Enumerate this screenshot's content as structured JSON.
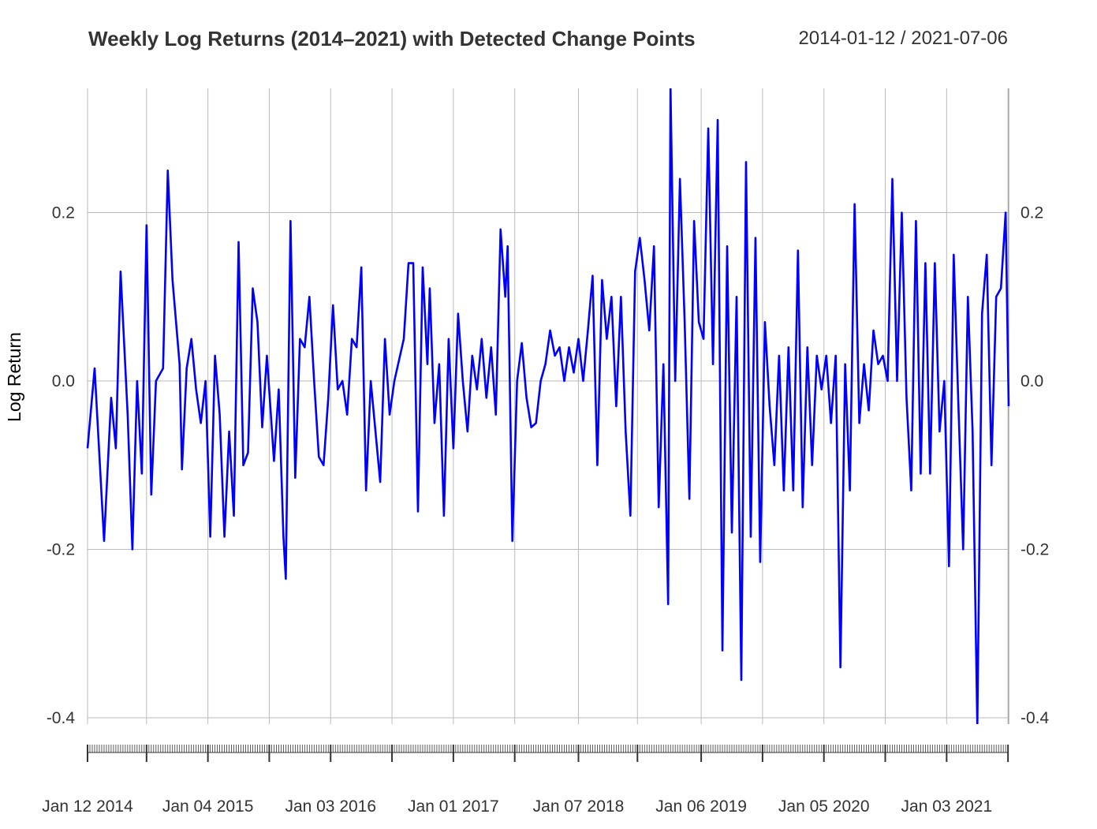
{
  "chart_data": {
    "type": "line",
    "title": "Weekly Log Returns (2014–2021) with Detected Change Points",
    "date_range": "2014-01-12 / 2021-07-06",
    "xlabel": "",
    "ylabel": "Log Return",
    "x_start": "2014-01-12",
    "x_end": "2021-07-06",
    "ylim": [
      -0.4,
      0.35
    ],
    "y_ticks": [
      0.2,
      0.0,
      -0.2,
      -0.4
    ],
    "y_tick_labels": [
      "0.2",
      "0.0",
      "-0.2",
      "-0.4"
    ],
    "x_ticks": [
      {
        "date": "2014-01-12",
        "label": "Jan 12 2014"
      },
      {
        "date": "2015-01-04",
        "label": "Jan 04 2015"
      },
      {
        "date": "2016-01-03",
        "label": "Jan 03 2016"
      },
      {
        "date": "2017-01-01",
        "label": "Jan 01 2017"
      },
      {
        "date": "2018-01-07",
        "label": "Jan 07 2018"
      },
      {
        "date": "2019-01-06",
        "label": "Jan 06 2019"
      },
      {
        "date": "2020-01-05",
        "label": "Jan 05 2020"
      },
      {
        "date": "2021-01-03",
        "label": "Jan 03 2021"
      }
    ],
    "x_gridlines": [
      "2014-01-12",
      "2014-07-06",
      "2015-01-04",
      "2015-07-05",
      "2016-01-03",
      "2016-07-03",
      "2017-01-01",
      "2017-07-02",
      "2018-01-07",
      "2018-07-01",
      "2019-01-06",
      "2019-07-07",
      "2020-01-05",
      "2020-07-05",
      "2021-01-03",
      "2021-07-04"
    ],
    "grid": true,
    "series": [
      {
        "color": "#0000ff",
        "points": [
          [
            "2014-01-12",
            -0.08
          ],
          [
            "2014-02-02",
            0.015
          ],
          [
            "2014-03-02",
            -0.19
          ],
          [
            "2014-03-23",
            -0.02
          ],
          [
            "2014-04-06",
            -0.08
          ],
          [
            "2014-04-20",
            0.13
          ],
          [
            "2014-05-11",
            -0.04
          ],
          [
            "2014-05-25",
            -0.2
          ],
          [
            "2014-06-08",
            0.0
          ],
          [
            "2014-06-22",
            -0.11
          ],
          [
            "2014-07-06",
            0.185
          ],
          [
            "2014-07-20",
            -0.135
          ],
          [
            "2014-08-03",
            0.0
          ],
          [
            "2014-08-24",
            0.015
          ],
          [
            "2014-09-07",
            0.25
          ],
          [
            "2014-09-21",
            0.12
          ],
          [
            "2014-10-12",
            0.02
          ],
          [
            "2014-10-19",
            -0.105
          ],
          [
            "2014-11-02",
            0.015
          ],
          [
            "2014-11-16",
            0.05
          ],
          [
            "2014-11-30",
            -0.01
          ],
          [
            "2014-12-14",
            -0.05
          ],
          [
            "2014-12-28",
            0.0
          ],
          [
            "2015-01-11",
            -0.185
          ],
          [
            "2015-01-25",
            0.03
          ],
          [
            "2015-02-08",
            -0.04
          ],
          [
            "2015-02-22",
            -0.185
          ],
          [
            "2015-03-08",
            -0.06
          ],
          [
            "2015-03-22",
            -0.16
          ],
          [
            "2015-04-05",
            0.165
          ],
          [
            "2015-04-19",
            -0.1
          ],
          [
            "2015-05-03",
            -0.085
          ],
          [
            "2015-05-17",
            0.11
          ],
          [
            "2015-05-31",
            0.07
          ],
          [
            "2015-06-14",
            -0.055
          ],
          [
            "2015-06-28",
            0.03
          ],
          [
            "2015-07-19",
            -0.095
          ],
          [
            "2015-08-02",
            -0.01
          ],
          [
            "2015-08-16",
            -0.185
          ],
          [
            "2015-08-23",
            -0.235
          ],
          [
            "2015-09-06",
            0.19
          ],
          [
            "2015-09-20",
            -0.115
          ],
          [
            "2015-10-04",
            0.05
          ],
          [
            "2015-10-18",
            0.04
          ],
          [
            "2015-11-01",
            0.1
          ],
          [
            "2015-11-15",
            0.0
          ],
          [
            "2015-11-29",
            -0.09
          ],
          [
            "2015-12-13",
            -0.1
          ],
          [
            "2015-12-27",
            -0.02
          ],
          [
            "2016-01-10",
            0.09
          ],
          [
            "2016-01-24",
            -0.01
          ],
          [
            "2016-02-07",
            0.0
          ],
          [
            "2016-02-21",
            -0.04
          ],
          [
            "2016-03-06",
            0.05
          ],
          [
            "2016-03-20",
            0.04
          ],
          [
            "2016-04-03",
            0.135
          ],
          [
            "2016-04-17",
            -0.13
          ],
          [
            "2016-05-01",
            0.0
          ],
          [
            "2016-05-15",
            -0.06
          ],
          [
            "2016-05-29",
            -0.12
          ],
          [
            "2016-06-12",
            0.05
          ],
          [
            "2016-06-26",
            -0.04
          ],
          [
            "2016-07-10",
            0.0
          ],
          [
            "2016-07-24",
            0.025
          ],
          [
            "2016-08-07",
            0.05
          ],
          [
            "2016-08-21",
            0.14
          ],
          [
            "2016-09-04",
            0.14
          ],
          [
            "2016-09-18",
            -0.155
          ],
          [
            "2016-10-02",
            0.135
          ],
          [
            "2016-10-16",
            0.02
          ],
          [
            "2016-10-23",
            0.11
          ],
          [
            "2016-11-06",
            -0.05
          ],
          [
            "2016-11-20",
            0.02
          ],
          [
            "2016-12-04",
            -0.16
          ],
          [
            "2016-12-18",
            0.05
          ],
          [
            "2017-01-01",
            -0.08
          ],
          [
            "2017-01-15",
            0.08
          ],
          [
            "2017-01-29",
            0.0
          ],
          [
            "2017-02-12",
            -0.06
          ],
          [
            "2017-02-26",
            0.03
          ],
          [
            "2017-03-12",
            -0.01
          ],
          [
            "2017-03-26",
            0.05
          ],
          [
            "2017-04-09",
            -0.02
          ],
          [
            "2017-04-23",
            0.04
          ],
          [
            "2017-05-07",
            -0.04
          ],
          [
            "2017-05-21",
            0.18
          ],
          [
            "2017-06-04",
            0.1
          ],
          [
            "2017-06-11",
            0.16
          ],
          [
            "2017-06-25",
            -0.19
          ],
          [
            "2017-07-09",
            0.0
          ],
          [
            "2017-07-23",
            0.045
          ],
          [
            "2017-08-06",
            -0.02
          ],
          [
            "2017-08-20",
            -0.055
          ],
          [
            "2017-09-03",
            -0.05
          ],
          [
            "2017-09-17",
            0.0
          ],
          [
            "2017-10-01",
            0.02
          ],
          [
            "2017-10-15",
            0.06
          ],
          [
            "2017-10-29",
            0.03
          ],
          [
            "2017-11-12",
            0.04
          ],
          [
            "2017-11-26",
            0.0
          ],
          [
            "2017-12-10",
            0.04
          ],
          [
            "2017-12-24",
            0.01
          ],
          [
            "2018-01-07",
            0.05
          ],
          [
            "2018-01-21",
            0.0
          ],
          [
            "2018-02-04",
            0.06
          ],
          [
            "2018-02-18",
            0.125
          ],
          [
            "2018-03-04",
            -0.1
          ],
          [
            "2018-03-18",
            0.12
          ],
          [
            "2018-04-01",
            0.05
          ],
          [
            "2018-04-15",
            0.1
          ],
          [
            "2018-04-29",
            -0.03
          ],
          [
            "2018-05-13",
            0.1
          ],
          [
            "2018-05-27",
            -0.06
          ],
          [
            "2018-06-10",
            -0.16
          ],
          [
            "2018-06-24",
            0.13
          ],
          [
            "2018-07-08",
            0.17
          ],
          [
            "2018-07-22",
            0.12
          ],
          [
            "2018-08-05",
            0.06
          ],
          [
            "2018-08-19",
            0.16
          ],
          [
            "2018-09-02",
            -0.15
          ],
          [
            "2018-09-16",
            0.02
          ],
          [
            "2018-09-30",
            -0.265
          ],
          [
            "2018-10-07",
            0.35
          ],
          [
            "2018-10-21",
            0.0
          ],
          [
            "2018-11-04",
            0.24
          ],
          [
            "2018-11-18",
            0.07
          ],
          [
            "2018-12-02",
            -0.14
          ],
          [
            "2018-12-16",
            0.19
          ],
          [
            "2018-12-30",
            0.07
          ],
          [
            "2019-01-13",
            0.05
          ],
          [
            "2019-01-27",
            0.3
          ],
          [
            "2019-02-10",
            0.02
          ],
          [
            "2019-02-24",
            0.31
          ],
          [
            "2019-03-10",
            -0.32
          ],
          [
            "2019-03-24",
            0.16
          ],
          [
            "2019-04-07",
            -0.18
          ],
          [
            "2019-04-21",
            0.1
          ],
          [
            "2019-05-05",
            -0.355
          ],
          [
            "2019-05-19",
            0.26
          ],
          [
            "2019-06-02",
            -0.185
          ],
          [
            "2019-06-16",
            0.17
          ],
          [
            "2019-06-30",
            -0.215
          ],
          [
            "2019-07-14",
            0.07
          ],
          [
            "2019-07-28",
            -0.03
          ],
          [
            "2019-08-11",
            -0.1
          ],
          [
            "2019-08-25",
            0.03
          ],
          [
            "2019-09-08",
            -0.13
          ],
          [
            "2019-09-22",
            0.04
          ],
          [
            "2019-10-06",
            -0.13
          ],
          [
            "2019-10-20",
            0.155
          ],
          [
            "2019-11-03",
            -0.15
          ],
          [
            "2019-11-17",
            0.04
          ],
          [
            "2019-12-01",
            -0.1
          ],
          [
            "2019-12-15",
            0.03
          ],
          [
            "2019-12-29",
            -0.01
          ],
          [
            "2020-01-12",
            0.03
          ],
          [
            "2020-01-26",
            -0.05
          ],
          [
            "2020-02-09",
            0.03
          ],
          [
            "2020-02-23",
            -0.34
          ],
          [
            "2020-03-08",
            0.02
          ],
          [
            "2020-03-22",
            -0.13
          ],
          [
            "2020-04-05",
            0.21
          ],
          [
            "2020-04-19",
            -0.05
          ],
          [
            "2020-05-03",
            0.02
          ],
          [
            "2020-05-17",
            -0.035
          ],
          [
            "2020-05-31",
            0.06
          ],
          [
            "2020-06-14",
            0.02
          ],
          [
            "2020-06-28",
            0.03
          ],
          [
            "2020-07-12",
            0.0
          ],
          [
            "2020-07-26",
            0.24
          ],
          [
            "2020-08-09",
            0.0
          ],
          [
            "2020-08-23",
            0.2
          ],
          [
            "2020-09-06",
            -0.02
          ],
          [
            "2020-09-20",
            -0.13
          ],
          [
            "2020-10-04",
            0.19
          ],
          [
            "2020-10-18",
            -0.11
          ],
          [
            "2020-11-01",
            0.14
          ],
          [
            "2020-11-15",
            -0.11
          ],
          [
            "2020-11-29",
            0.14
          ],
          [
            "2020-12-13",
            -0.06
          ],
          [
            "2020-12-27",
            0.0
          ],
          [
            "2021-01-10",
            -0.22
          ],
          [
            "2021-01-24",
            0.15
          ],
          [
            "2021-02-07",
            -0.03
          ],
          [
            "2021-02-21",
            -0.2
          ],
          [
            "2021-03-07",
            0.1
          ],
          [
            "2021-03-21",
            -0.06
          ],
          [
            "2021-04-04",
            -0.41
          ],
          [
            "2021-04-18",
            0.08
          ],
          [
            "2021-05-02",
            0.15
          ],
          [
            "2021-05-16",
            -0.1
          ],
          [
            "2021-05-30",
            0.1
          ],
          [
            "2021-06-13",
            0.11
          ],
          [
            "2021-06-27",
            0.2
          ],
          [
            "2021-07-06",
            -0.03
          ]
        ]
      }
    ]
  }
}
